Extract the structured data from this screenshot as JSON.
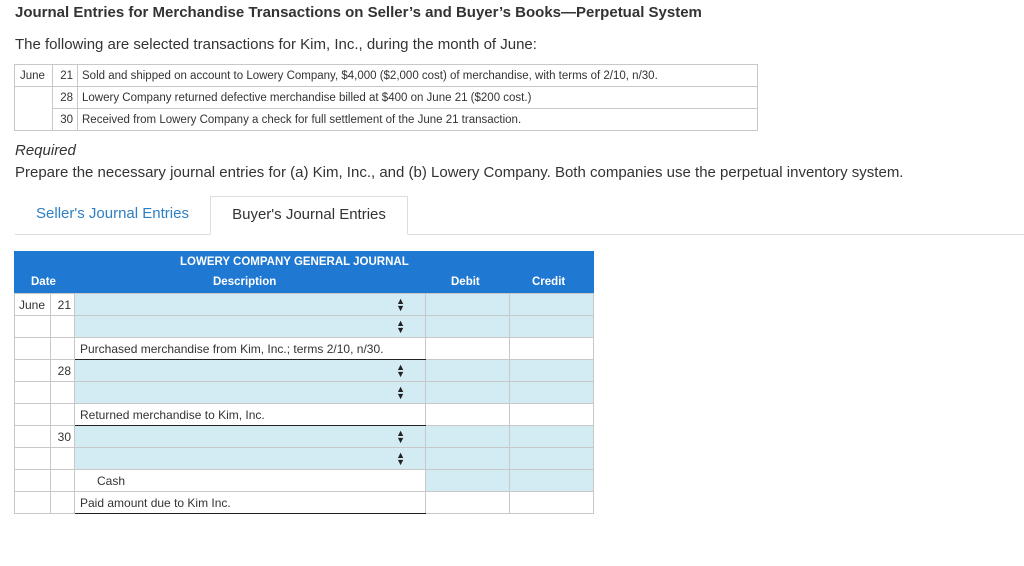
{
  "title": "Journal Entries for Merchandise Transactions on Seller’s and Buyer’s Books—Perpetual System",
  "intro": "The following are selected transactions for Kim, Inc., during the month of June:",
  "transactions": [
    {
      "month": "June",
      "day": "21",
      "text": "Sold and shipped on account to Lowery Company, $4,000 ($2,000 cost) of merchandise, with terms of 2/10, n/30."
    },
    {
      "month": "",
      "day": "28",
      "text": "Lowery Company returned defective merchandise billed at $400 on June 21 ($200 cost.)"
    },
    {
      "month": "",
      "day": "30",
      "text": "Received from Lowery Company a check for full settlement of the June 21 transaction."
    }
  ],
  "required_label": "Required",
  "prepare_text": "Prepare the necessary journal entries for (a) Kim, Inc., and (b) Lowery Company. Both companies use the perpetual inventory system.",
  "tabs": {
    "sellers": "Seller's Journal Entries",
    "buyers": "Buyer's Journal Entries"
  },
  "journal": {
    "title": "LOWERY COMPANY GENERAL JOURNAL",
    "headers": {
      "date": "Date",
      "description": "Description",
      "debit": "Debit",
      "credit": "Credit"
    },
    "entries": [
      {
        "month": "June",
        "day": "21",
        "narration": "Purchased merchandise from Kim, Inc.; terms 2/10, n/30."
      },
      {
        "month": "",
        "day": "28",
        "narration": "Returned merchandise to Kim, Inc."
      },
      {
        "month": "",
        "day": "30",
        "cash_label": "Cash",
        "narration": "Paid amount due to Kim Inc."
      }
    ]
  },
  "colors": {
    "header_blue": "#1f78d1",
    "input_blue": "#d3ebf3",
    "link_blue": "#2f7fc3"
  },
  "icons": {
    "dropdown": "up-down-arrow-icon"
  }
}
